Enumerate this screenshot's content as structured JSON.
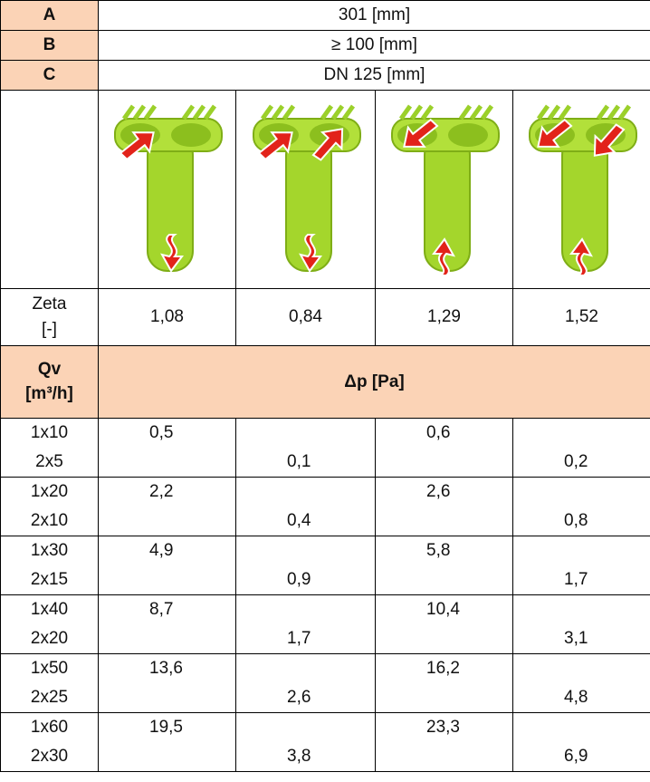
{
  "table": {
    "spec_rows": [
      [
        "A",
        "301 [mm]"
      ],
      [
        "B",
        "≥ 100 [mm]"
      ],
      [
        "C",
        "DN 125 [mm]"
      ]
    ],
    "zeta": {
      "label": "Zeta",
      "unit": "[-]",
      "values": [
        "1,08",
        "0,84",
        "1,29",
        "1,52"
      ]
    },
    "header": {
      "qv": "Qv",
      "qv_unit": "[m³/h]",
      "dp": "Δp [Pa]"
    },
    "rows": [
      {
        "q1": "1x10",
        "q2": "2x5",
        "values": [
          "0,5",
          "0,1",
          "0,6",
          "0,2"
        ]
      },
      {
        "q1": "1x20",
        "q2": "2x10",
        "values": [
          "2,2",
          "0,4",
          "2,6",
          "0,8"
        ]
      },
      {
        "q1": "1x30",
        "q2": "2x15",
        "values": [
          "4,9",
          "0,9",
          "5,8",
          "1,7"
        ]
      },
      {
        "q1": "1x40",
        "q2": "2x20",
        "values": [
          "8,7",
          "1,7",
          "10,4",
          "3,1"
        ]
      },
      {
        "q1": "1x50",
        "q2": "2x25",
        "values": [
          "13,6",
          "2,6",
          "16,2",
          "4,8"
        ]
      },
      {
        "q1": "1x60",
        "q2": "2x30",
        "values": [
          "19,5",
          "3,8",
          "23,3",
          "6,9"
        ]
      }
    ]
  }
}
